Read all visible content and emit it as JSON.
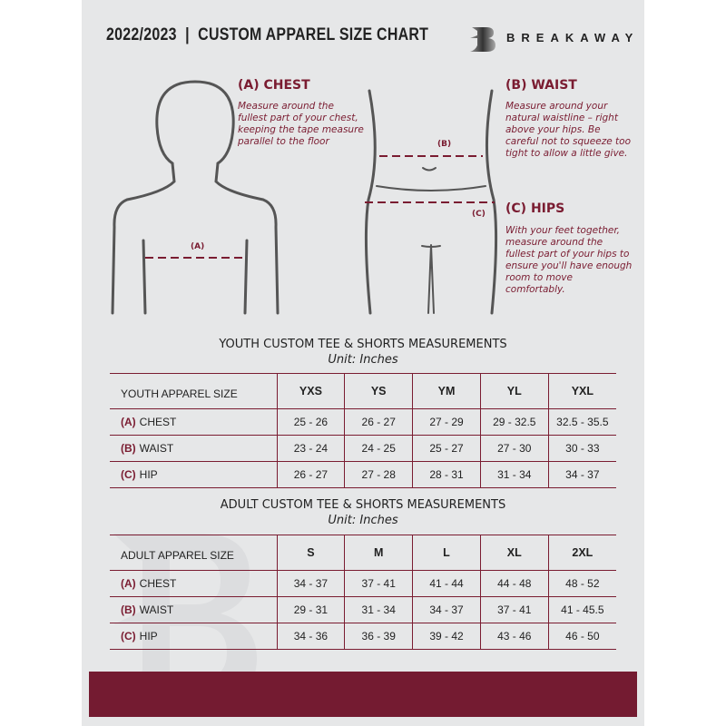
{
  "header": {
    "title": "2022/2023  |  CUSTOM APPAREL SIZE CHART",
    "brand": "BREAKAWAY",
    "logo_letter": "B"
  },
  "colors": {
    "accent": "#741b31",
    "background": "#e6e7e8"
  },
  "guide": {
    "chest": {
      "heading": "(A) CHEST",
      "marker": "(A)",
      "text": "Measure around the fullest part of your chest, keeping the tape measure parallel to the floor"
    },
    "waist": {
      "heading": "(B) WAIST",
      "marker": "(B)",
      "text": "Measure around your natural waistline – right above your hips. Be careful not to squeeze too tight to allow a little give."
    },
    "hips": {
      "heading": "(C) HIPS",
      "marker": "(C)",
      "text": "With your feet together, measure around the fullest part of your hips to ensure you'll have enough room to move comfortably."
    }
  },
  "youth": {
    "title": "YOUTH CUSTOM TEE & SHORTS MEASUREMENTS",
    "unit": "Unit: Inches",
    "size_label": "YOUTH APPAREL SIZE",
    "sizes": [
      "YXS",
      "YS",
      "YM",
      "YL",
      "YXL"
    ],
    "rows": [
      {
        "code": "(A)",
        "name": "CHEST",
        "values": [
          "25 - 26",
          "26 - 27",
          "27 - 29",
          "29 - 32.5",
          "32.5 - 35.5"
        ]
      },
      {
        "code": "(B)",
        "name": "WAIST",
        "values": [
          "23 - 24",
          "24 - 25",
          "25 - 27",
          "27 - 30",
          "30 - 33"
        ]
      },
      {
        "code": "(C)",
        "name": "HIP",
        "values": [
          "26 - 27",
          "27 - 28",
          "28 - 31",
          "31 - 34",
          "34 - 37"
        ]
      }
    ]
  },
  "adult": {
    "title": "ADULT CUSTOM TEE & SHORTS MEASUREMENTS",
    "unit": "Unit: Inches",
    "size_label": "ADULT APPAREL SIZE",
    "sizes": [
      "S",
      "M",
      "L",
      "XL",
      "2XL"
    ],
    "rows": [
      {
        "code": "(A)",
        "name": "CHEST",
        "values": [
          "34 - 37",
          "37 - 41",
          "41 - 44",
          "44 - 48",
          "48 - 52"
        ]
      },
      {
        "code": "(B)",
        "name": "WAIST",
        "values": [
          "29 - 31",
          "31 - 34",
          "34 - 37",
          "37 - 41",
          "41 - 45.5"
        ]
      },
      {
        "code": "(C)",
        "name": "HIP",
        "values": [
          "34 - 36",
          "36 - 39",
          "39 - 42",
          "43 - 46",
          "46 - 50"
        ]
      }
    ]
  }
}
